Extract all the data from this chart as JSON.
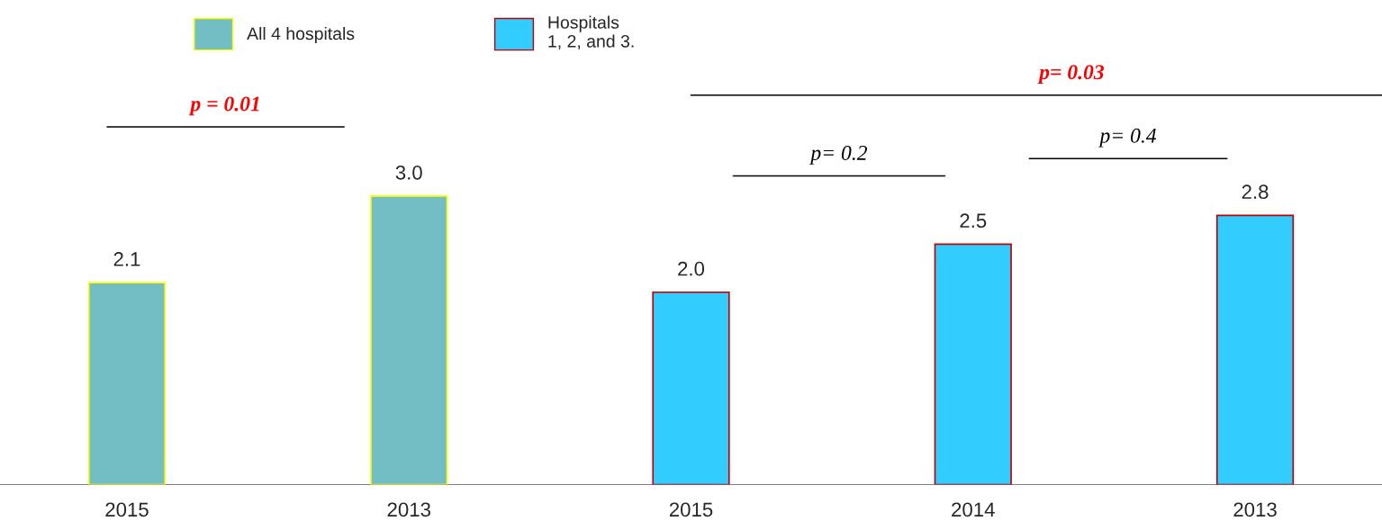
{
  "chart_data": {
    "type": "bar",
    "categories": [
      "2015",
      "2013",
      "2015",
      "2014",
      "2013"
    ],
    "series": [
      {
        "name": "All 4 hospitals",
        "color": "#72bec4",
        "values": [
          2.1,
          3.0,
          null,
          null,
          null
        ],
        "value_labels": [
          "2.1",
          "3.0",
          null,
          null,
          null
        ]
      },
      {
        "name": "Hospitals\n1, 2, and 3.",
        "color": "#33ccff",
        "values": [
          null,
          null,
          2.0,
          2.5,
          2.8
        ],
        "value_labels": [
          null,
          null,
          "2.0",
          "2.5",
          "2.8"
        ]
      }
    ],
    "legend": "top",
    "grid": false,
    "annotations": [
      "p = 0.01",
      "p= 0.03",
      "p= 0.2",
      "p= 0.4"
    ]
  }
}
